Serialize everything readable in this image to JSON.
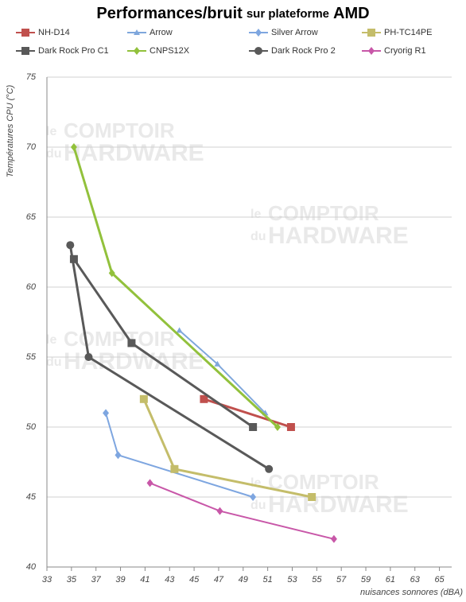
{
  "chart_data": {
    "type": "line",
    "title_parts": [
      "Performances/bruit",
      "sur plateforme",
      "AMD"
    ],
    "watermark": [
      "le",
      "COMPTOIR",
      "du",
      "HARDWARE"
    ],
    "ylabel": "Températures CPU (°C)",
    "xlabel": "nuisances sonnores (dBA)",
    "xlim": [
      33,
      66
    ],
    "xticks": [
      33,
      35,
      37,
      39,
      41,
      43,
      45,
      47,
      49,
      51,
      53,
      55,
      57,
      59,
      61,
      63,
      65
    ],
    "ylim": [
      40,
      75
    ],
    "yticks": [
      40,
      45,
      50,
      55,
      60,
      65,
      70,
      75
    ],
    "grid": true,
    "series": [
      {
        "name": "NH-D14",
        "color": "#c0504d",
        "marker": "square",
        "x": [
          45.8,
          52.9
        ],
        "values": [
          52,
          50
        ]
      },
      {
        "name": "Arrow",
        "color": "#7fa7dc",
        "marker": "triangle",
        "x": [
          43.8,
          46.9,
          50.8
        ],
        "values": [
          56.9,
          54.5,
          51
        ]
      },
      {
        "name": "Silver Arrow",
        "color": "#7ea6e0",
        "marker": "diamond",
        "x": [
          37.8,
          38.8,
          49.8
        ],
        "values": [
          51,
          48,
          45
        ]
      },
      {
        "name": "PH-TC14PE",
        "color": "#c4bd6a",
        "marker": "square",
        "x": [
          40.9,
          43.4,
          54.6
        ],
        "values": [
          52,
          47,
          45
        ]
      },
      {
        "name": "Dark Rock Pro C1",
        "color": "#595959",
        "marker": "square",
        "x": [
          35.2,
          39.9,
          49.8
        ],
        "values": [
          62,
          56,
          50
        ]
      },
      {
        "name": "CNPS12X",
        "color": "#92c13c",
        "marker": "diamond",
        "x": [
          35.2,
          38.3,
          51.8
        ],
        "values": [
          70,
          61,
          50
        ]
      },
      {
        "name": "Dark Rock Pro 2",
        "color": "#595959",
        "marker": "circle",
        "x": [
          34.9,
          36.4,
          51.1
        ],
        "values": [
          63,
          55,
          47
        ]
      },
      {
        "name": "Cryorig R1",
        "color": "#c857a8",
        "marker": "diamond",
        "x": [
          41.4,
          47.1,
          56.4
        ],
        "values": [
          46,
          44,
          42
        ]
      }
    ]
  }
}
